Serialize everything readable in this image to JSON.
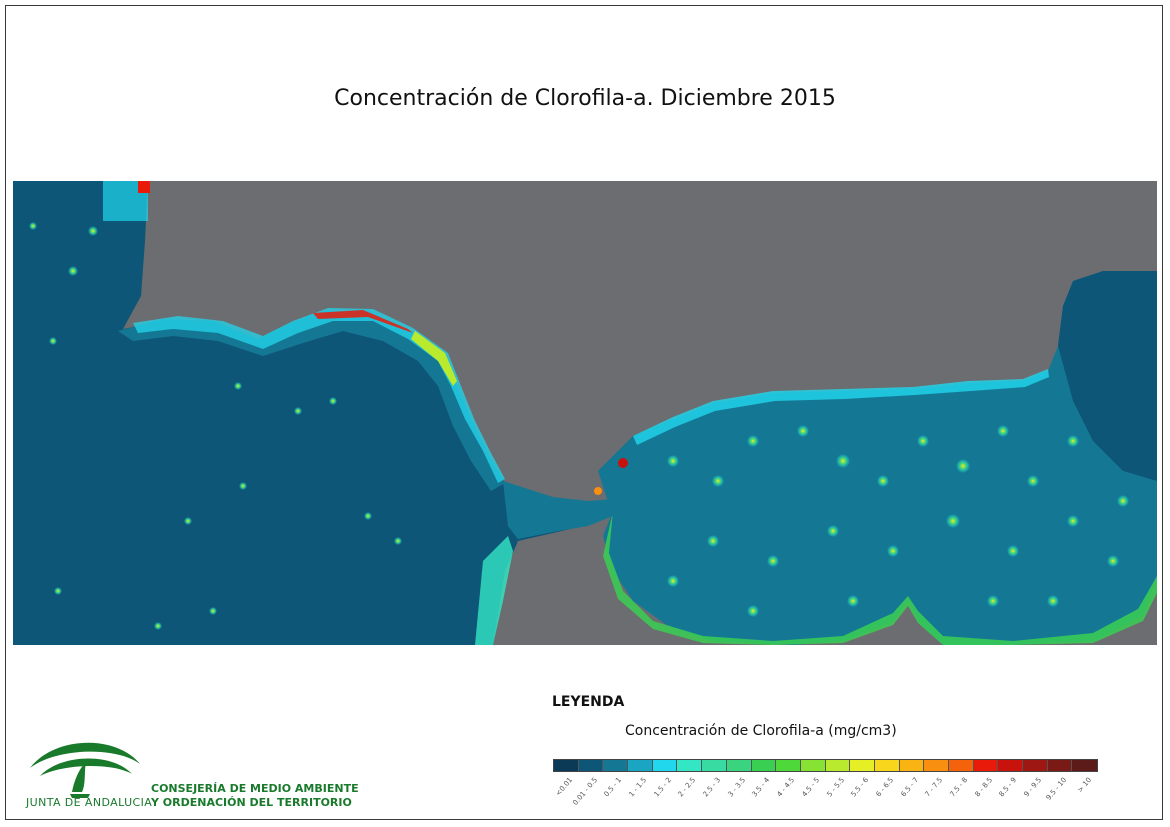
{
  "title": "Concentración de Clorofila-a. Diciembre 2015",
  "legend": {
    "heading": "LEYENDA",
    "subtitle": "Concentración de Clorofila-a (mg/cm3)",
    "classes": [
      {
        "label": "<0.01",
        "color": "#0b3a57"
      },
      {
        "label": "0.01 - 0.5",
        "color": "#0e5677"
      },
      {
        "label": "0.5 - 1",
        "color": "#147895"
      },
      {
        "label": "1 - 1.5",
        "color": "#1aa6c2"
      },
      {
        "label": "1.5 - 2",
        "color": "#21d7ee"
      },
      {
        "label": "2 - 2.5",
        "color": "#33e6c4"
      },
      {
        "label": "2.5 - 3",
        "color": "#38dca2"
      },
      {
        "label": "3 - 3.5",
        "color": "#3ad37f"
      },
      {
        "label": "3.5 - 4",
        "color": "#38cf52"
      },
      {
        "label": "4 - 4.5",
        "color": "#4fd83a"
      },
      {
        "label": "4.5 - 5",
        "color": "#86e233"
      },
      {
        "label": "5 - 5.5",
        "color": "#b9ea2e"
      },
      {
        "label": "5.5 - 6",
        "color": "#e6ee26"
      },
      {
        "label": "6 - 6.5",
        "color": "#f7d61c"
      },
      {
        "label": "6.5 - 7",
        "color": "#f9b414"
      },
      {
        "label": "7 - 7.5",
        "color": "#f88f10"
      },
      {
        "label": "7.5 - 8",
        "color": "#f4620c"
      },
      {
        "label": "8 - 8.5",
        "color": "#ea1a0a"
      },
      {
        "label": "8.5 - 9",
        "color": "#c8130c"
      },
      {
        "label": "9 - 9.5",
        "color": "#9e1712"
      },
      {
        "label": "9.5 - 10",
        "color": "#7a1a16"
      },
      {
        "label": "> 10",
        "color": "#5c1a18"
      }
    ]
  },
  "colors": {
    "land": "#6b6d70",
    "sea": "#0e5677",
    "frame": "#3a3a3a",
    "brand_green": "#1a7a2c"
  },
  "logo": {
    "brand": "JUNTA DE ANDALUCIA",
    "org_line1": "CONSEJERÍA DE MEDIO AMBIENTE",
    "org_line2": "Y ORDENACIÓN DEL TERRITORIO"
  }
}
